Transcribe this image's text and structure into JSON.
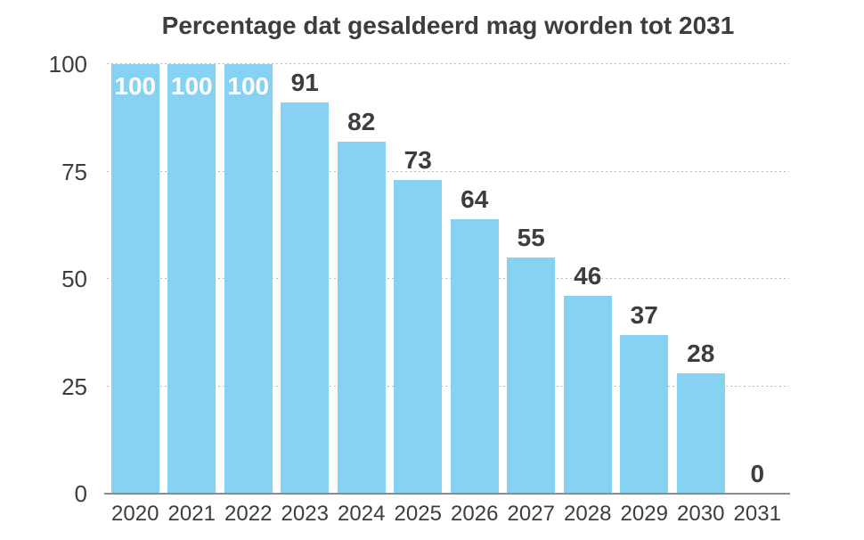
{
  "chart_data": {
    "type": "bar",
    "title": "Percentage dat gesaldeerd mag worden tot 2031",
    "categories": [
      "2020",
      "2021",
      "2022",
      "2023",
      "2024",
      "2025",
      "2026",
      "2027",
      "2028",
      "2029",
      "2030",
      "2031"
    ],
    "values": [
      100,
      100,
      100,
      91,
      82,
      73,
      64,
      55,
      46,
      37,
      28,
      0
    ],
    "xlabel": "",
    "ylabel": "",
    "ylim": [
      0,
      100
    ],
    "yticks": [
      0,
      25,
      50,
      75,
      100
    ],
    "grid": "horizontal-dotted",
    "legend_position": "none",
    "bar_color": "#87d2f3",
    "value_label_inside_color": "#ffffff",
    "value_label_outside_color": "#3d3d3d",
    "gridline_color": "#bcbcbc",
    "axis_line_color": "#8c8c8c",
    "text_color": "#3d3d3d",
    "background_color": "#ffffff"
  }
}
